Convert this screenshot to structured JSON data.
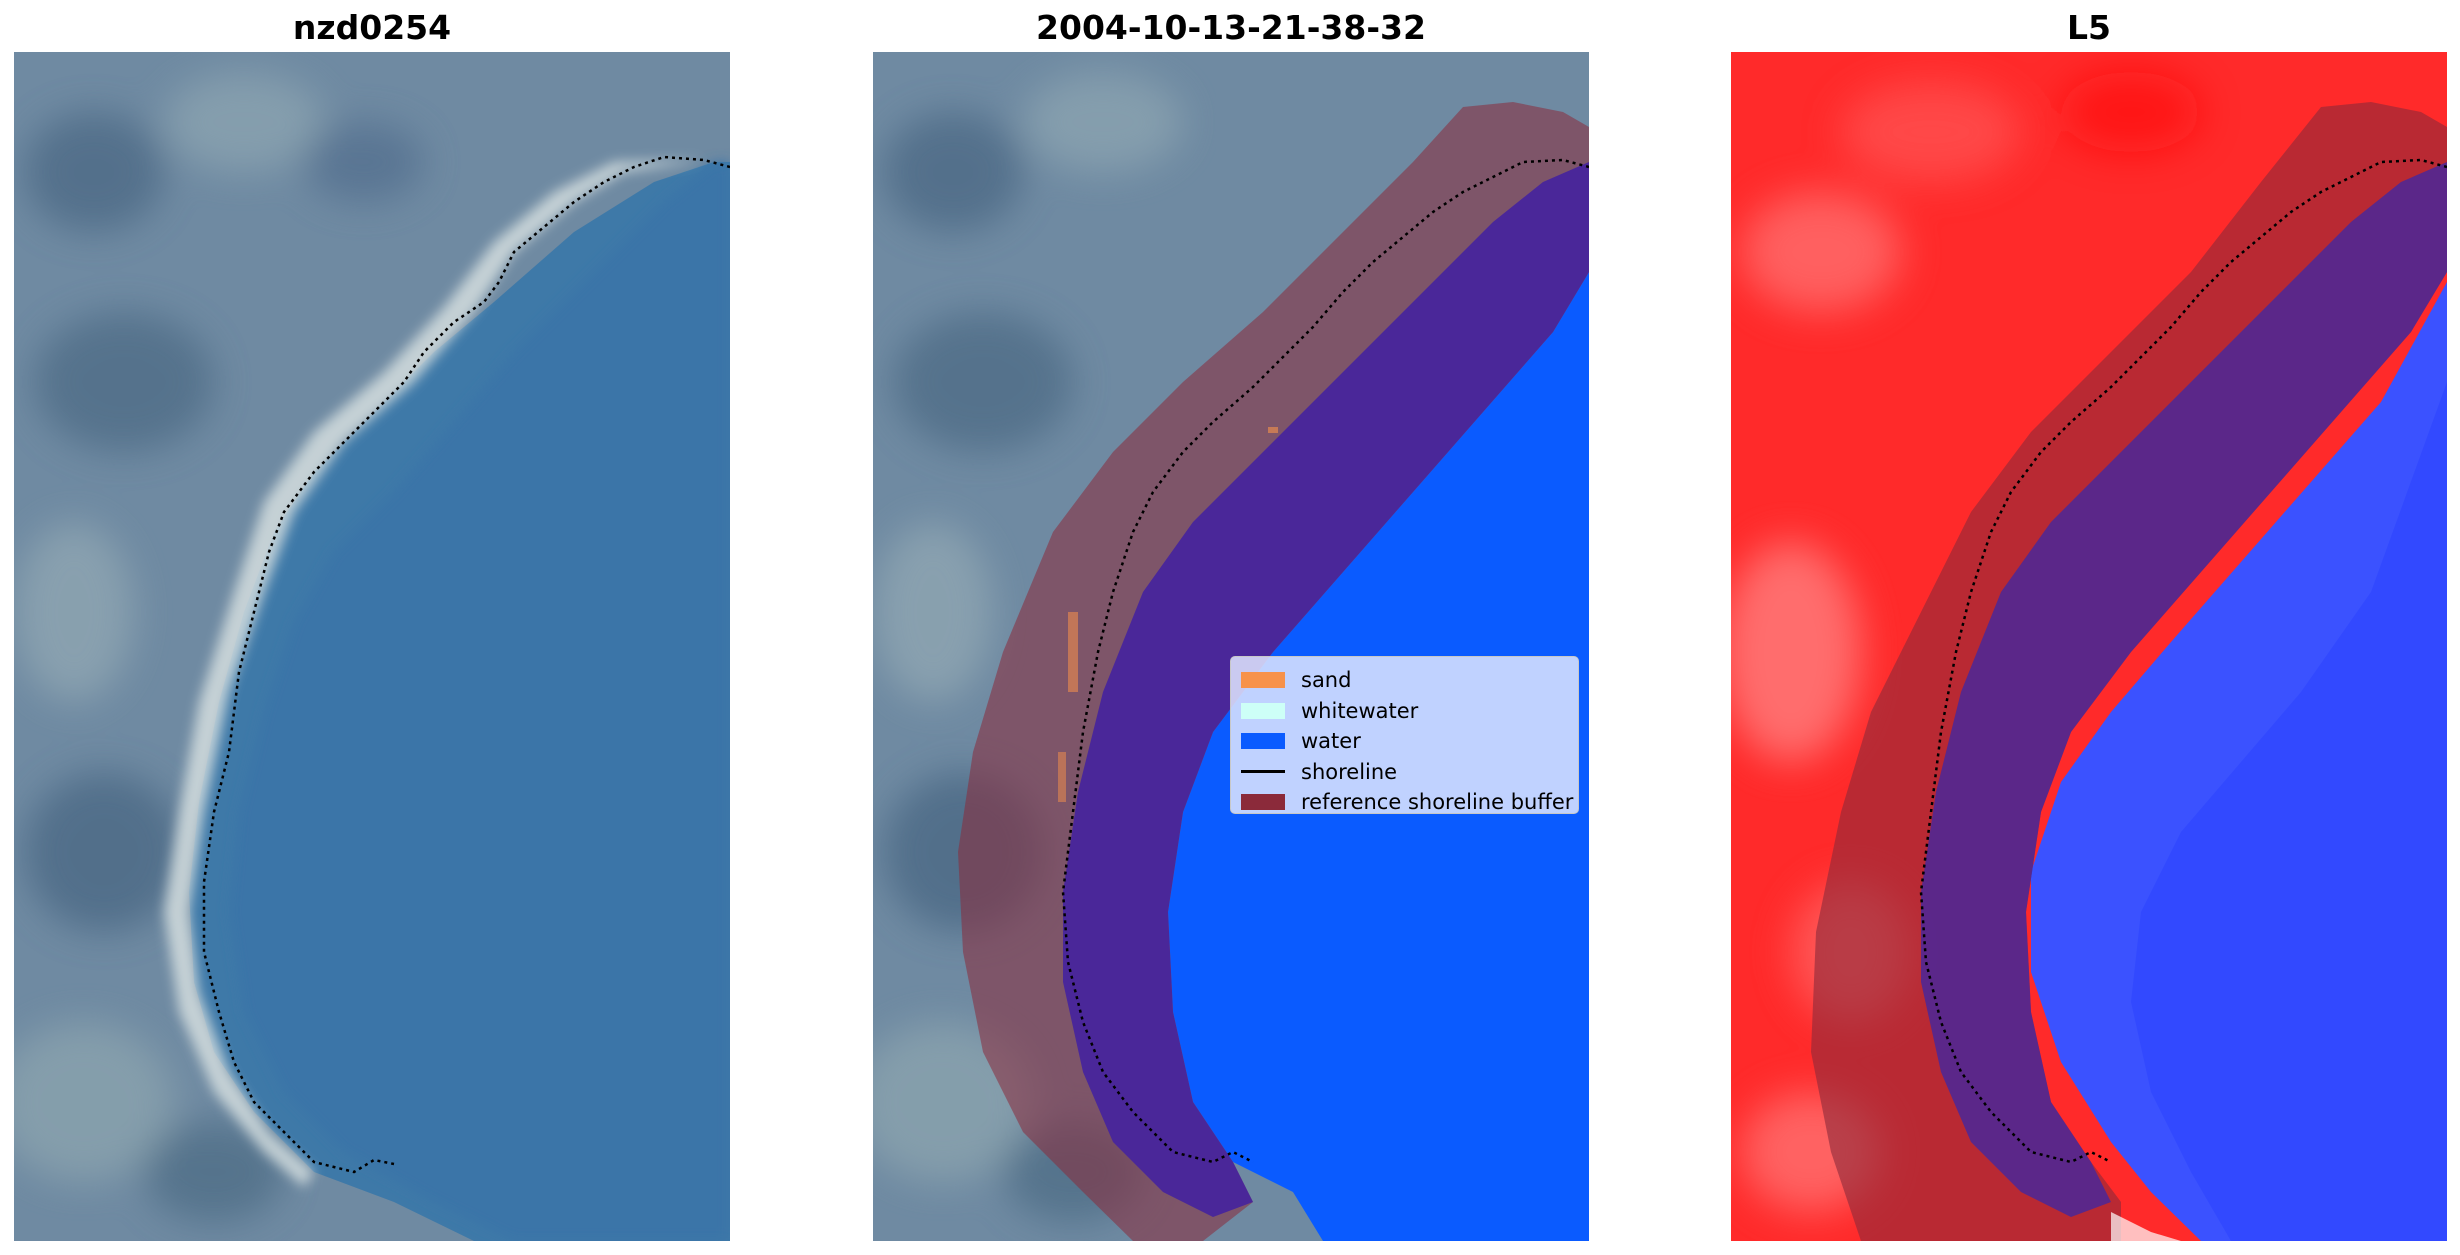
{
  "panels": [
    {
      "title": "nzd0254"
    },
    {
      "title": "2004-10-13-21-38-32"
    },
    {
      "title": "L5"
    }
  ],
  "legend": {
    "items": [
      {
        "label": "sand",
        "color": "#f7924a",
        "kind": "patch"
      },
      {
        "label": "whitewater",
        "color": "#cdfff7",
        "kind": "patch"
      },
      {
        "label": "water",
        "color": "#0a5bff",
        "kind": "patch"
      },
      {
        "label": "shoreline",
        "color": "#000000",
        "kind": "line"
      },
      {
        "label": "reference shoreline buffer",
        "color": "#8b2a3a",
        "kind": "patch"
      }
    ]
  },
  "colors": {
    "land_rgb": "#6e8aa3",
    "sea_rgb": "#3f7aa8",
    "beach": "#e7ece9",
    "class_water": "#0a5bff",
    "buffer_overlay": "#8b2a3a",
    "index_land": "#ff2020",
    "index_water": "#2d4cff"
  }
}
